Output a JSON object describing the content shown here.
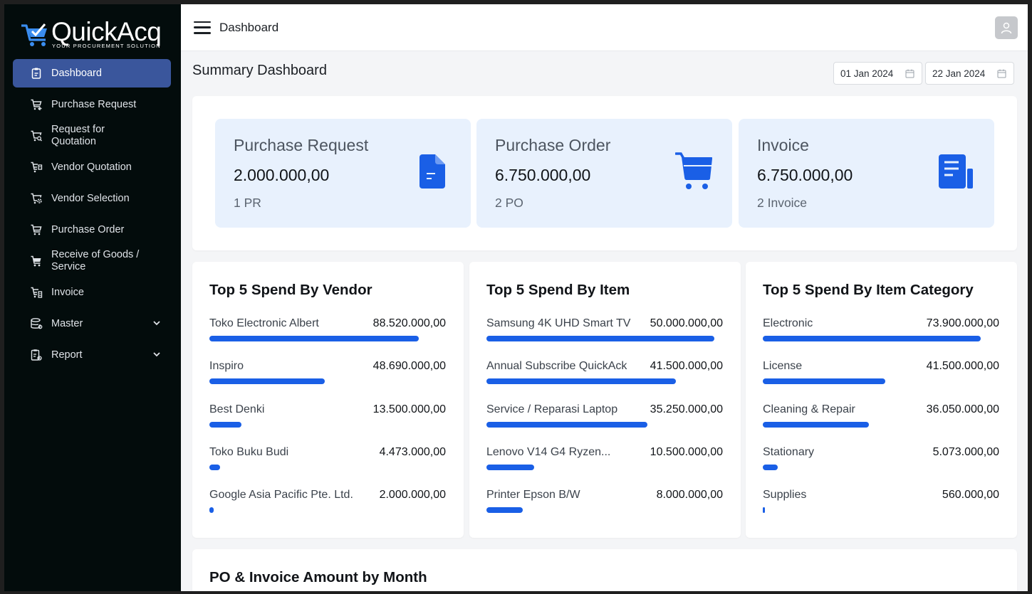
{
  "sidebar": {
    "logo_text": "QuickAcq",
    "logo_tagline": "YOUR PROCUREMENT SOLUTION",
    "items": [
      {
        "label": "Dashboard",
        "icon": "clipboard-icon"
      },
      {
        "label": "Purchase Request",
        "icon": "cart-plus-icon"
      },
      {
        "label": "Request for Quotation",
        "icon": "cart-search-icon"
      },
      {
        "label": "Vendor Quotation",
        "icon": "cart-doc-icon"
      },
      {
        "label": "Vendor Selection",
        "icon": "cart-gear-icon"
      },
      {
        "label": "Purchase Order",
        "icon": "cart-icon"
      },
      {
        "label": "Receive of Goods / Service",
        "icon": "cart-filled-icon"
      },
      {
        "label": "Invoice",
        "icon": "cart-invoice-icon"
      },
      {
        "label": "Master",
        "icon": "database-icon"
      },
      {
        "label": "Report",
        "icon": "report-icon"
      }
    ]
  },
  "header": {
    "title": "Dashboard"
  },
  "summary": {
    "title": "Summary Dashboard",
    "date_from": "01 Jan 2024",
    "date_to": "22 Jan 2024",
    "stats": [
      {
        "title": "Purchase Request",
        "value": "2.000.000,00",
        "sub": "1 PR",
        "icon": "document-icon"
      },
      {
        "title": "Purchase Order",
        "value": "6.750.000,00",
        "sub": "2 PO",
        "icon": "cart-icon"
      },
      {
        "title": "Invoice",
        "value": "6.750.000,00",
        "sub": "2 Invoice",
        "icon": "invoice-icon"
      }
    ]
  },
  "top5": [
    {
      "title": "Top 5 Spend By Vendor",
      "rows": [
        {
          "label": "Toko Electronic Albert",
          "value": "88.520.000,00",
          "pct": 0.92
        },
        {
          "label": "Inspiro",
          "value": "48.690.000,00",
          "pct": 0.505
        },
        {
          "label": "Best Denki",
          "value": "13.500.000,00",
          "pct": 0.14
        },
        {
          "label": "Toko Buku Budi",
          "value": "4.473.000,00",
          "pct": 0.046
        },
        {
          "label": "Google Asia Pacific Pte. Ltd.",
          "value": "2.000.000,00",
          "pct": 0.02
        }
      ]
    },
    {
      "title": "Top 5 Spend By Item",
      "rows": [
        {
          "label": "Samsung 4K UHD Smart TV",
          "value": "50.000.000,00",
          "pct": 1.0
        },
        {
          "label": "Annual Subscribe QuickAck",
          "value": "41.500.000,00",
          "pct": 0.83
        },
        {
          "label": "Service / Reparasi Laptop",
          "value": "35.250.000,00",
          "pct": 0.705
        },
        {
          "label": "Lenovo V14 G4 Ryzen...",
          "value": "10.500.000,00",
          "pct": 0.21
        },
        {
          "label": "Printer Epson B/W",
          "value": "8.000.000,00",
          "pct": 0.16
        }
      ]
    },
    {
      "title": "Top 5 Spend By Item Category",
      "rows": [
        {
          "label": "Electronic",
          "value": "73.900.000,00",
          "pct": 0.955
        },
        {
          "label": "License",
          "value": "41.500.000,00",
          "pct": 0.537
        },
        {
          "label": "Cleaning & Repair",
          "value": "36.050.000,00",
          "pct": 0.466
        },
        {
          "label": "Stationary",
          "value": "5.073.000,00",
          "pct": 0.066
        },
        {
          "label": "Supplies",
          "value": "560.000,00",
          "pct": 0.007
        }
      ]
    }
  ],
  "chart_section": {
    "title": "PO & Invoice Amount by Month"
  },
  "colors": {
    "sidebar_bg": "#030c0c",
    "active_nav": "#3a569c",
    "accent": "#1a5fe6",
    "stat_bg": "#e8f1fd"
  }
}
